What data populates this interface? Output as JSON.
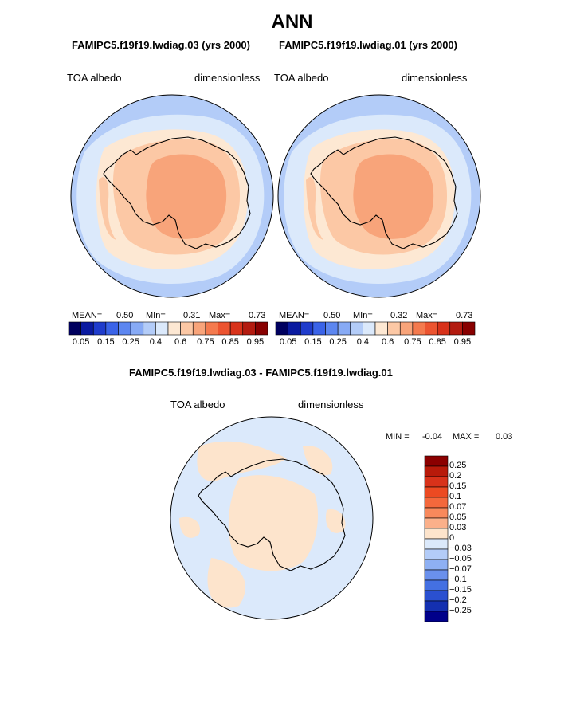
{
  "title": "ANN",
  "panels": [
    {
      "case": "FAMIPC5.f19f19.lwdiag.03 (yrs 2000)",
      "variable": "TOA albedo",
      "units": "dimensionless",
      "mean_label": "MEAN=",
      "mean": "0.50",
      "min_label": "MIn=",
      "min": "0.31",
      "max_label": "Max=",
      "max": "0.73"
    },
    {
      "case": "FAMIPC5.f19f19.lwdiag.01 (yrs 2000)",
      "variable": "TOA albedo",
      "units": "dimensionless",
      "mean_label": "MEAN=",
      "mean": "0.50",
      "min_label": "MIn=",
      "min": "0.32",
      "max_label": "Max=",
      "max": "0.73"
    }
  ],
  "colorbar_top": {
    "ticks": [
      "0.05",
      "0.15",
      "0.25",
      "0.4",
      "0.6",
      "0.75",
      "0.85",
      "0.95"
    ],
    "colors": [
      "#00005e",
      "#0a1aa0",
      "#1f3ccc",
      "#3a63e8",
      "#5c86f0",
      "#87aaf5",
      "#b3ccf8",
      "#dbe9fb",
      "#fde8d3",
      "#fcc8a5",
      "#f8a47a",
      "#f47a4e",
      "#ec5430",
      "#d8321a",
      "#b31b10",
      "#880000"
    ]
  },
  "difference": {
    "title": "FAMIPC5.f19f19.lwdiag.03 - FAMIPC5.f19f19.lwdiag.01",
    "variable": "TOA albedo",
    "units": "dimensionless",
    "min_label": "MIN =",
    "min": "-0.04",
    "max_label": "MAX =",
    "max": "0.03",
    "colorbar": {
      "levels": [
        "0.25",
        "0.2",
        "0.15",
        "0.1",
        "0.07",
        "0.05",
        "0.03",
        "0",
        "-0.03",
        "-0.05",
        "-0.07",
        "-0.1",
        "-0.15",
        "-0.2",
        "-0.25"
      ],
      "colors": [
        "#8b0000",
        "#b81a0a",
        "#d8321a",
        "#ec4a22",
        "#f4683c",
        "#f8895c",
        "#fbb08a",
        "#fde4cc",
        "#dbe9fb",
        "#b3ccf8",
        "#8eb0f3",
        "#6a90ec",
        "#4470e2",
        "#2a50d0",
        "#1430b0",
        "#00008a"
      ]
    }
  },
  "colors": {
    "ocean_high": "#b3ccf8",
    "ocean_low": "#dbe9fb",
    "land_mid": "#fcc8a5",
    "land_high": "#f8a47a",
    "diff_pos": "#fde4cc",
    "diff_zero": "#dbe9fb"
  },
  "chart_data": [
    {
      "type": "heatmap",
      "projection": "south-polar-stereographic",
      "title": "FAMIPC5.f19f19.lwdiag.03 (yrs 2000)",
      "variable": "TOA albedo",
      "units": "dimensionless",
      "mean": 0.5,
      "min": 0.31,
      "max": 0.73,
      "levels": [
        0.05,
        0.1,
        0.15,
        0.2,
        0.25,
        0.3,
        0.35,
        0.4,
        0.45,
        0.5,
        0.55,
        0.6,
        0.65,
        0.7,
        0.75,
        0.8,
        0.85,
        0.9,
        0.95
      ]
    },
    {
      "type": "heatmap",
      "projection": "south-polar-stereographic",
      "title": "FAMIPC5.f19f19.lwdiag.01 (yrs 2000)",
      "variable": "TOA albedo",
      "units": "dimensionless",
      "mean": 0.5,
      "min": 0.32,
      "max": 0.73,
      "levels": [
        0.05,
        0.1,
        0.15,
        0.2,
        0.25,
        0.3,
        0.35,
        0.4,
        0.45,
        0.5,
        0.55,
        0.6,
        0.65,
        0.7,
        0.75,
        0.8,
        0.85,
        0.9,
        0.95
      ]
    },
    {
      "type": "heatmap",
      "projection": "south-polar-stereographic",
      "title": "FAMIPC5.f19f19.lwdiag.03 - FAMIPC5.f19f19.lwdiag.01",
      "variable": "TOA albedo",
      "units": "dimensionless",
      "min": -0.04,
      "max": 0.03,
      "levels": [
        -0.25,
        -0.2,
        -0.15,
        -0.1,
        -0.07,
        -0.05,
        -0.03,
        0,
        0.03,
        0.05,
        0.07,
        0.1,
        0.15,
        0.2,
        0.25
      ]
    }
  ]
}
